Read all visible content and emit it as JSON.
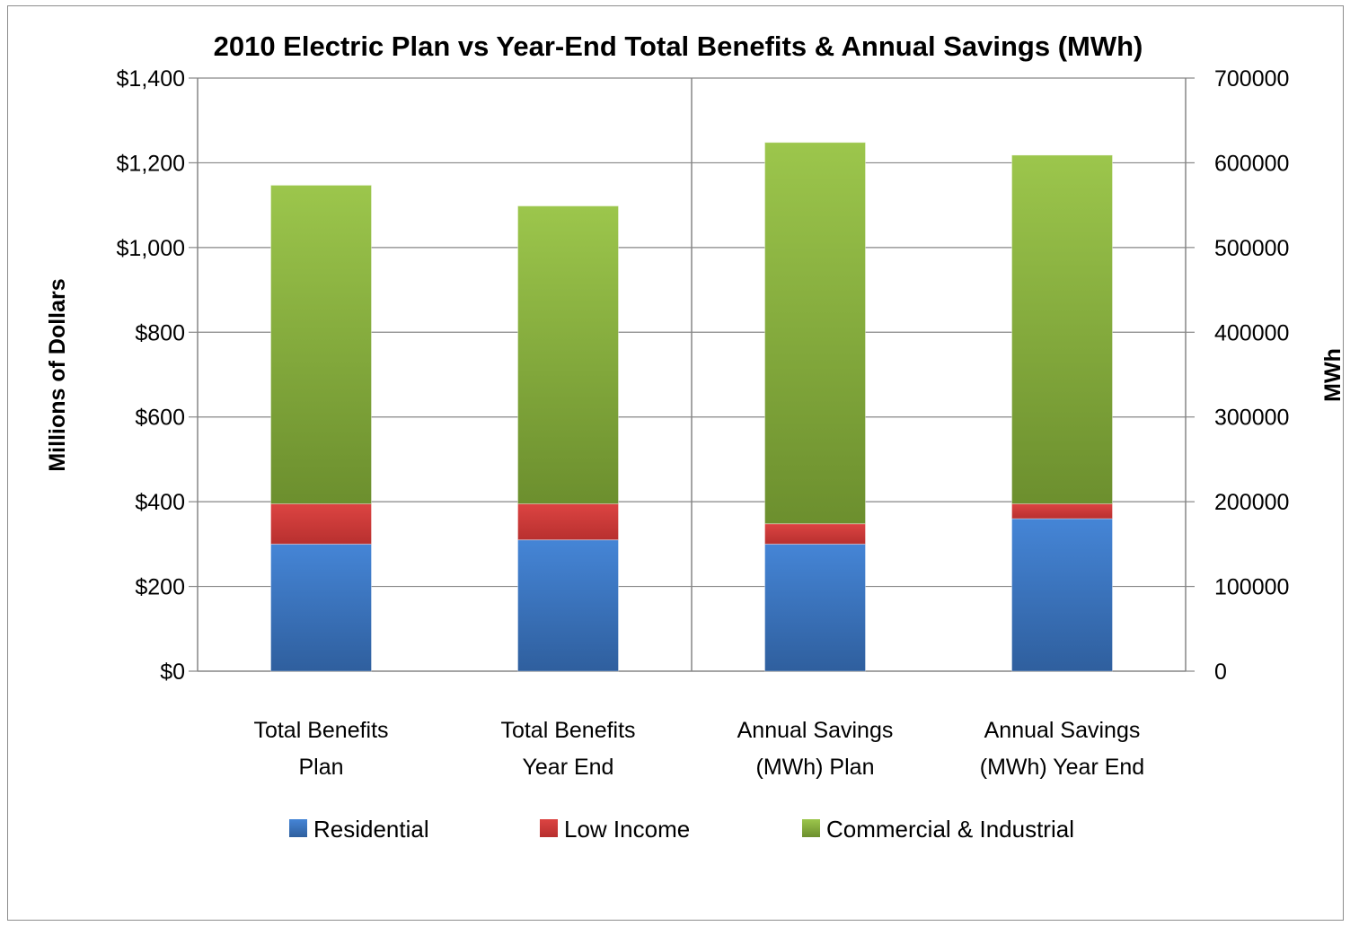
{
  "chart_data": {
    "type": "bar",
    "stacked": true,
    "title": "2010 Electric  Plan vs Year-End Total Benefits & Annual Savings (MWh)",
    "ylabel": "Millions of Dollars",
    "y2label": "MWh",
    "categories": [
      [
        "Total Benefits",
        "Plan"
      ],
      [
        "Total Benefits",
        "Year End"
      ],
      [
        "Annual Savings",
        "(MWh) Plan"
      ],
      [
        "Annual Savings",
        "(MWh) Year End"
      ]
    ],
    "y_ticks": [
      "$0",
      "$200",
      "$400",
      "$600",
      "$800",
      "$1,000",
      "$1,200",
      "$1,400"
    ],
    "y2_ticks": [
      "0",
      "100000",
      "200000",
      "300000",
      "400000",
      "500000",
      "600000",
      "700000"
    ],
    "ylim": [
      0,
      1400
    ],
    "y2lim": [
      0,
      700000
    ],
    "grid": true,
    "legend_position": "bottom",
    "series": [
      {
        "name": "Residential",
        "color": "#3a76c4",
        "values": [
          300,
          310,
          300,
          360
        ]
      },
      {
        "name": "Low Income",
        "color": "#d03c3a",
        "values": [
          95,
          85,
          48,
          35
        ]
      },
      {
        "name": "Commercial & Industrial",
        "color": "#8ab83f",
        "values": [
          752,
          703,
          900,
          823
        ]
      }
    ]
  }
}
